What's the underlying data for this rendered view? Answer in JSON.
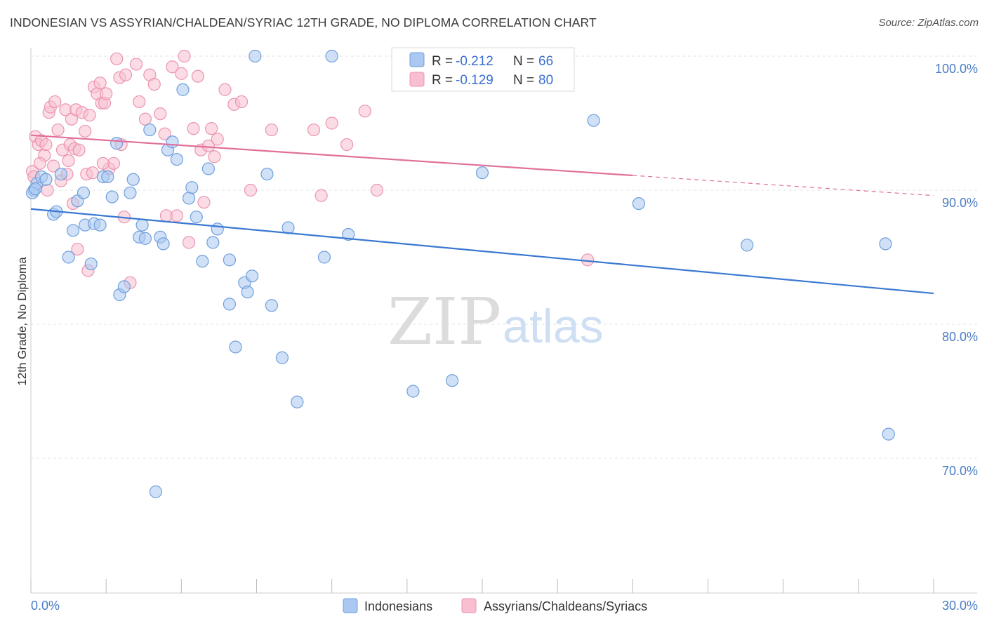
{
  "title": "INDONESIAN VS ASSYRIAN/CHALDEAN/SYRIAC 12TH GRADE, NO DIPLOMA CORRELATION CHART",
  "source": "Source: ZipAtlas.com",
  "watermark": {
    "zip": "ZIP",
    "atlas": "atlas"
  },
  "colors": {
    "blue_fill": "#aac8f0",
    "blue_stroke": "#6f9fdc",
    "blue_line": "#3a78d2",
    "pink_fill": "#f7bfd0",
    "pink_stroke": "#eb94b0",
    "pink_line": "#e0709a",
    "tick_text": "#4a7cc7",
    "grid": "#e3e3e3"
  },
  "legend": {
    "rows": [
      {
        "r_label": "R = ",
        "r_value": "-0.212",
        "n_label": "N = ",
        "n_value": "66"
      },
      {
        "r_label": "R = ",
        "r_value": "-0.129",
        "n_label": "N = ",
        "n_value": "80"
      }
    ]
  },
  "chart_data": {
    "type": "scatter",
    "title": "INDONESIAN VS ASSYRIAN/CHALDEAN/SYRIAC 12TH GRADE, NO DIPLOMA CORRELATION CHART",
    "xlabel": "",
    "ylabel": "12th Grade, No Diploma",
    "xlim": [
      0,
      30
    ],
    "ylim": [
      60,
      102
    ],
    "x_tick_labels": [
      "0.0%",
      "30.0%"
    ],
    "y_ticks": [
      100,
      90,
      80,
      70
    ],
    "y_tick_labels": [
      "100.0%",
      "90.0%",
      "80.0%",
      "70.0%"
    ],
    "grid": true,
    "legend_position": "top-center",
    "series": [
      {
        "name": "Indonesians",
        "color": "#aac8f0",
        "r": -0.212,
        "n": 66,
        "trend": {
          "x": [
            0.0,
            30.0
          ],
          "y": [
            88.6,
            82.3
          ]
        },
        "points": [
          [
            0.1,
            90.0
          ],
          [
            0.2,
            90.5
          ],
          [
            0.35,
            91.0
          ],
          [
            0.5,
            90.8
          ],
          [
            0.75,
            88.2
          ],
          [
            0.85,
            88.4
          ],
          [
            1.0,
            91.2
          ],
          [
            1.25,
            85.0
          ],
          [
            1.4,
            87.0
          ],
          [
            1.55,
            89.2
          ],
          [
            1.75,
            89.8
          ],
          [
            1.8,
            87.4
          ],
          [
            2.0,
            84.5
          ],
          [
            2.1,
            87.5
          ],
          [
            2.3,
            87.4
          ],
          [
            2.4,
            91.0
          ],
          [
            2.55,
            91.0
          ],
          [
            2.7,
            89.5
          ],
          [
            2.85,
            93.5
          ],
          [
            2.95,
            82.2
          ],
          [
            3.1,
            82.8
          ],
          [
            3.3,
            89.8
          ],
          [
            3.4,
            90.8
          ],
          [
            3.6,
            86.5
          ],
          [
            3.7,
            87.4
          ],
          [
            3.8,
            86.4
          ],
          [
            3.95,
            94.5
          ],
          [
            4.15,
            67.5
          ],
          [
            4.3,
            86.5
          ],
          [
            4.4,
            86.0
          ],
          [
            4.55,
            93.0
          ],
          [
            4.7,
            93.6
          ],
          [
            4.85,
            92.3
          ],
          [
            5.05,
            97.5
          ],
          [
            5.25,
            89.4
          ],
          [
            5.35,
            90.2
          ],
          [
            5.5,
            88.0
          ],
          [
            5.7,
            84.7
          ],
          [
            5.9,
            91.6
          ],
          [
            6.05,
            86.1
          ],
          [
            6.2,
            87.1
          ],
          [
            6.6,
            84.8
          ],
          [
            6.6,
            81.5
          ],
          [
            6.8,
            78.3
          ],
          [
            7.1,
            83.1
          ],
          [
            7.2,
            82.4
          ],
          [
            7.35,
            83.6
          ],
          [
            7.45,
            100.0
          ],
          [
            7.85,
            91.2
          ],
          [
            8.0,
            81.4
          ],
          [
            8.35,
            77.5
          ],
          [
            8.55,
            87.2
          ],
          [
            8.85,
            74.2
          ],
          [
            9.75,
            85.0
          ],
          [
            10.0,
            100.0
          ],
          [
            10.55,
            86.7
          ],
          [
            12.7,
            75.0
          ],
          [
            14.0,
            75.8
          ],
          [
            15.0,
            91.3
          ],
          [
            18.7,
            95.2
          ],
          [
            20.2,
            89.0
          ],
          [
            23.8,
            85.9
          ],
          [
            28.4,
            86.0
          ],
          [
            28.5,
            71.8
          ],
          [
            0.05,
            89.8
          ],
          [
            0.15,
            90.1
          ]
        ]
      },
      {
        "name": "Assyrians/Chaldeans/Syriacs",
        "color": "#f7bfd0",
        "r": -0.129,
        "n": 80,
        "trend": {
          "x": [
            0.0,
            20.0
          ],
          "y": [
            94.1,
            91.1
          ]
        },
        "trend_dashed": {
          "x": [
            20.0,
            30.0
          ],
          "y": [
            91.1,
            89.6
          ]
        },
        "points": [
          [
            0.05,
            91.4
          ],
          [
            0.15,
            94.0
          ],
          [
            0.25,
            93.4
          ],
          [
            0.35,
            93.7
          ],
          [
            0.45,
            92.6
          ],
          [
            0.5,
            93.4
          ],
          [
            0.6,
            95.8
          ],
          [
            0.65,
            96.2
          ],
          [
            0.75,
            91.8
          ],
          [
            0.8,
            96.6
          ],
          [
            0.9,
            94.5
          ],
          [
            1.0,
            90.7
          ],
          [
            1.05,
            93.0
          ],
          [
            1.15,
            96.0
          ],
          [
            1.2,
            91.2
          ],
          [
            1.3,
            93.4
          ],
          [
            1.35,
            95.3
          ],
          [
            1.4,
            89.0
          ],
          [
            1.45,
            93.1
          ],
          [
            1.5,
            96.0
          ],
          [
            1.55,
            85.6
          ],
          [
            1.6,
            93.0
          ],
          [
            1.7,
            95.8
          ],
          [
            1.8,
            94.4
          ],
          [
            1.85,
            91.2
          ],
          [
            1.9,
            84.0
          ],
          [
            1.95,
            95.6
          ],
          [
            2.05,
            91.3
          ],
          [
            2.1,
            97.7
          ],
          [
            2.2,
            97.2
          ],
          [
            2.3,
            98.0
          ],
          [
            2.35,
            96.5
          ],
          [
            2.45,
            96.5
          ],
          [
            2.5,
            97.2
          ],
          [
            2.6,
            91.6
          ],
          [
            2.75,
            92.0
          ],
          [
            2.85,
            99.8
          ],
          [
            2.95,
            98.4
          ],
          [
            3.0,
            93.4
          ],
          [
            3.1,
            88.0
          ],
          [
            3.15,
            98.6
          ],
          [
            3.3,
            83.1
          ],
          [
            3.5,
            99.4
          ],
          [
            3.6,
            96.6
          ],
          [
            3.8,
            95.3
          ],
          [
            3.95,
            98.6
          ],
          [
            4.1,
            97.9
          ],
          [
            4.3,
            95.7
          ],
          [
            4.45,
            94.2
          ],
          [
            4.5,
            88.1
          ],
          [
            4.7,
            99.2
          ],
          [
            4.85,
            88.1
          ],
          [
            5.0,
            98.7
          ],
          [
            5.1,
            100.0
          ],
          [
            5.25,
            86.1
          ],
          [
            5.4,
            94.6
          ],
          [
            5.55,
            98.5
          ],
          [
            5.65,
            93.0
          ],
          [
            5.75,
            89.1
          ],
          [
            5.9,
            93.3
          ],
          [
            6.0,
            94.6
          ],
          [
            6.1,
            92.5
          ],
          [
            6.2,
            93.8
          ],
          [
            6.45,
            97.5
          ],
          [
            6.75,
            96.4
          ],
          [
            7.0,
            96.6
          ],
          [
            7.3,
            90.0
          ],
          [
            8.0,
            94.5
          ],
          [
            9.4,
            94.5
          ],
          [
            9.65,
            89.6
          ],
          [
            10.0,
            95.0
          ],
          [
            10.5,
            93.4
          ],
          [
            11.1,
            95.9
          ],
          [
            11.5,
            90.0
          ],
          [
            18.5,
            84.8
          ],
          [
            0.1,
            91.0
          ],
          [
            0.3,
            92.0
          ],
          [
            0.55,
            90.0
          ],
          [
            1.25,
            92.2
          ],
          [
            2.4,
            92.0
          ]
        ]
      }
    ]
  }
}
